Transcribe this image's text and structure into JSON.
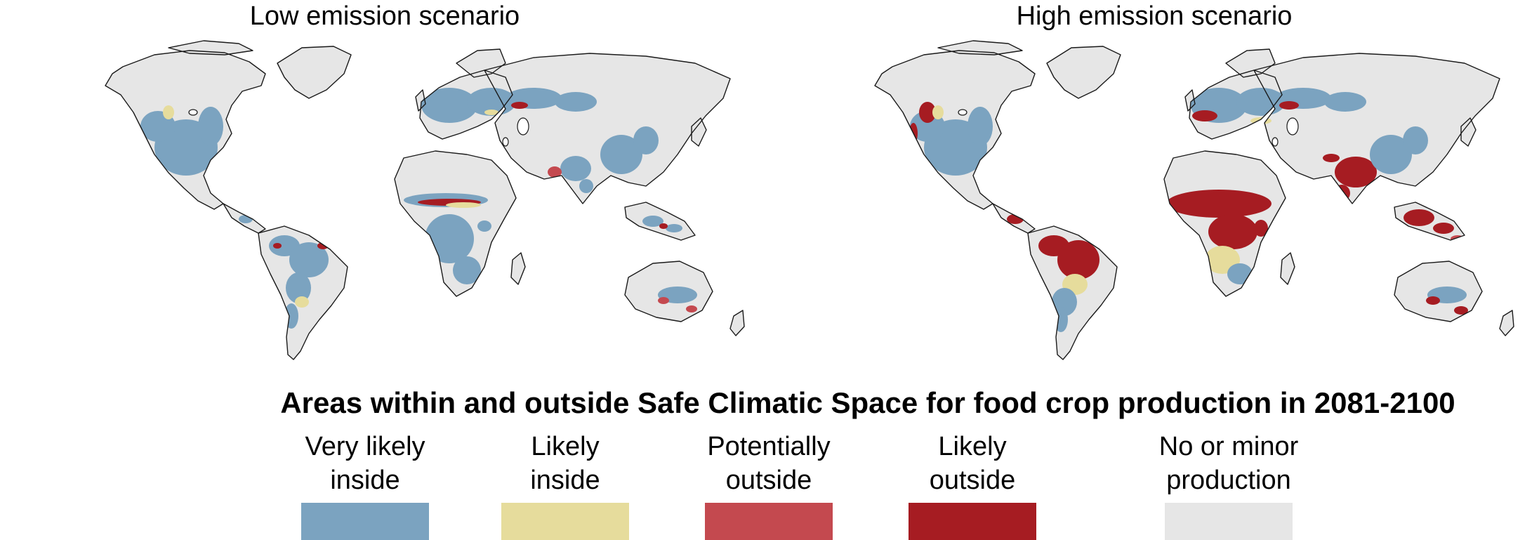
{
  "maps": [
    {
      "title": "Low emission scenario",
      "scenario": "low"
    },
    {
      "title": "High emission scenario",
      "scenario": "high"
    }
  ],
  "legend": {
    "title": "Areas within and outside Safe Climatic Space for food crop production in 2081-2100",
    "items": [
      {
        "label": "Very likely\ninside",
        "color": "#7ba3c0"
      },
      {
        "label": "Likely\ninside",
        "color": "#e6dc9c"
      },
      {
        "label": "Potentially\noutside",
        "color": "#c4494f"
      },
      {
        "label": "Likely\noutside",
        "color": "#a61c22"
      },
      {
        "label": "No or minor\nproduction",
        "color": "#e6e6e6"
      }
    ]
  },
  "colors": {
    "land": "#e6e6e6",
    "coast": "#1a1a1a"
  }
}
